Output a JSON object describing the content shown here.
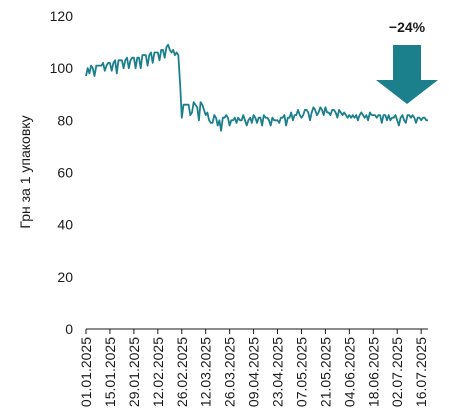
{
  "chart_data": {
    "type": "line",
    "title": "",
    "xlabel": "",
    "ylabel": "Грн за 1 упаковку",
    "ylim": [
      0,
      120
    ],
    "yticks": [
      0,
      20,
      40,
      60,
      80,
      100,
      120
    ],
    "xlim": [
      "01.01.2025",
      "20.07.2025"
    ],
    "xticks": [
      "01.01.2025",
      "15.01.2025",
      "29.01.2025",
      "12.02.2025",
      "26.02.2025",
      "12.03.2025",
      "26.03.2025",
      "09.04.2025",
      "23.04.2025",
      "07.05.2025",
      "21.05.2025",
      "04.06.2025",
      "18.06.2025",
      "02.07.2025",
      "16.07.2025"
    ],
    "grid": false,
    "legend": "none",
    "line_color": "#1b7f8c",
    "annotation": {
      "text": "−24%",
      "arrow_color": "#1b7f8c",
      "arrow_direction": "down"
    },
    "series": [
      {
        "values": [
          [
            "01.01.2025",
            97
          ],
          [
            "02.01.2025",
            100
          ],
          [
            "03.01.2025",
            98
          ],
          [
            "04.01.2025",
            101
          ],
          [
            "05.01.2025",
            100
          ],
          [
            "06.01.2025",
            97
          ],
          [
            "07.01.2025",
            101
          ],
          [
            "08.01.2025",
            101
          ],
          [
            "09.01.2025",
            101
          ],
          [
            "10.01.2025",
            101
          ],
          [
            "11.01.2025",
            102
          ],
          [
            "12.01.2025",
            99
          ],
          [
            "13.01.2025",
            101
          ],
          [
            "14.01.2025",
            102
          ],
          [
            "15.01.2025",
            102
          ],
          [
            "16.01.2025",
            99
          ],
          [
            "17.01.2025",
            102
          ],
          [
            "18.01.2025",
            103
          ],
          [
            "19.01.2025",
            98
          ],
          [
            "20.01.2025",
            103
          ],
          [
            "21.01.2025",
            103
          ],
          [
            "22.01.2025",
            103
          ],
          [
            "23.01.2025",
            100
          ],
          [
            "24.01.2025",
            103
          ],
          [
            "25.01.2025",
            104
          ],
          [
            "26.01.2025",
            100
          ],
          [
            "27.01.2025",
            103
          ],
          [
            "28.01.2025",
            104
          ],
          [
            "29.01.2025",
            104
          ],
          [
            "30.01.2025",
            100
          ],
          [
            "31.01.2025",
            104
          ],
          [
            "01.02.2025",
            104
          ],
          [
            "02.02.2025",
            100
          ],
          [
            "03.02.2025",
            105
          ],
          [
            "04.02.2025",
            105
          ],
          [
            "05.02.2025",
            105
          ],
          [
            "06.02.2025",
            101
          ],
          [
            "07.02.2025",
            105
          ],
          [
            "08.02.2025",
            106
          ],
          [
            "09.02.2025",
            102
          ],
          [
            "10.02.2025",
            106
          ],
          [
            "11.02.2025",
            106
          ],
          [
            "12.02.2025",
            106
          ],
          [
            "13.02.2025",
            103
          ],
          [
            "14.02.2025",
            107
          ],
          [
            "15.02.2025",
            107
          ],
          [
            "16.02.2025",
            104
          ],
          [
            "17.02.2025",
            108
          ],
          [
            "18.02.2025",
            109
          ],
          [
            "19.02.2025",
            107
          ],
          [
            "20.02.2025",
            106
          ],
          [
            "21.02.2025",
            107
          ],
          [
            "22.02.2025",
            105
          ],
          [
            "23.02.2025",
            106
          ],
          [
            "24.02.2025",
            105
          ],
          [
            "25.02.2025",
            94
          ],
          [
            "26.02.2025",
            81
          ],
          [
            "27.02.2025",
            86
          ],
          [
            "28.02.2025",
            86
          ],
          [
            "01.03.2025",
            86
          ],
          [
            "02.03.2025",
            86
          ],
          [
            "03.03.2025",
            82
          ],
          [
            "04.03.2025",
            83
          ],
          [
            "05.03.2025",
            87
          ],
          [
            "06.03.2025",
            86
          ],
          [
            "07.03.2025",
            85
          ],
          [
            "08.03.2025",
            80
          ],
          [
            "09.03.2025",
            87
          ],
          [
            "10.03.2025",
            86
          ],
          [
            "11.03.2025",
            84
          ],
          [
            "12.03.2025",
            82
          ],
          [
            "13.03.2025",
            83
          ],
          [
            "14.03.2025",
            80
          ],
          [
            "15.03.2025",
            79
          ],
          [
            "16.03.2025",
            79
          ],
          [
            "17.03.2025",
            82
          ],
          [
            "18.03.2025",
            81
          ],
          [
            "19.03.2025",
            78
          ],
          [
            "20.03.2025",
            80
          ],
          [
            "21.03.2025",
            76
          ],
          [
            "22.03.2025",
            81
          ],
          [
            "23.03.2025",
            81
          ],
          [
            "24.03.2025",
            82
          ],
          [
            "25.03.2025",
            81
          ],
          [
            "26.03.2025",
            78
          ],
          [
            "27.03.2025",
            80
          ],
          [
            "28.03.2025",
            80
          ],
          [
            "29.03.2025",
            81
          ],
          [
            "30.03.2025",
            79
          ],
          [
            "31.03.2025",
            81
          ],
          [
            "01.04.2025",
            80
          ],
          [
            "02.04.2025",
            80
          ],
          [
            "03.04.2025",
            82
          ],
          [
            "04.04.2025",
            80
          ],
          [
            "05.04.2025",
            78
          ],
          [
            "06.04.2025",
            80
          ],
          [
            "07.04.2025",
            81
          ],
          [
            "08.04.2025",
            79
          ],
          [
            "09.04.2025",
            82
          ],
          [
            "10.04.2025",
            81
          ],
          [
            "11.04.2025",
            79
          ],
          [
            "12.04.2025",
            81
          ],
          [
            "13.04.2025",
            81
          ],
          [
            "14.04.2025",
            78
          ],
          [
            "15.04.2025",
            82
          ],
          [
            "16.04.2025",
            81
          ],
          [
            "17.04.2025",
            81
          ],
          [
            "18.04.2025",
            80
          ],
          [
            "19.04.2025",
            78
          ],
          [
            "20.04.2025",
            81
          ],
          [
            "21.04.2025",
            80
          ],
          [
            "22.04.2025",
            80
          ],
          [
            "23.04.2025",
            80
          ],
          [
            "24.04.2025",
            79
          ],
          [
            "25.04.2025",
            81
          ],
          [
            "26.04.2025",
            81
          ],
          [
            "27.04.2025",
            82
          ],
          [
            "28.04.2025",
            78
          ],
          [
            "29.04.2025",
            81
          ],
          [
            "30.04.2025",
            81
          ],
          [
            "01.05.2025",
            83
          ],
          [
            "02.05.2025",
            80
          ],
          [
            "03.05.2025",
            82
          ],
          [
            "04.05.2025",
            82
          ],
          [
            "05.05.2025",
            84
          ],
          [
            "06.05.2025",
            82
          ],
          [
            "07.05.2025",
            81
          ],
          [
            "08.05.2025",
            82
          ],
          [
            "09.05.2025",
            84
          ],
          [
            "10.05.2025",
            84
          ],
          [
            "11.05.2025",
            83
          ],
          [
            "12.05.2025",
            80
          ],
          [
            "13.05.2025",
            83
          ],
          [
            "14.05.2025",
            85
          ],
          [
            "15.05.2025",
            84
          ],
          [
            "16.05.2025",
            82
          ],
          [
            "17.05.2025",
            83
          ],
          [
            "18.05.2025",
            85
          ],
          [
            "19.05.2025",
            84
          ],
          [
            "20.05.2025",
            82
          ],
          [
            "21.05.2025",
            85
          ],
          [
            "22.05.2025",
            83
          ],
          [
            "23.05.2025",
            83
          ],
          [
            "24.05.2025",
            82
          ],
          [
            "25.05.2025",
            84
          ],
          [
            "26.05.2025",
            84
          ],
          [
            "27.05.2025",
            83
          ],
          [
            "28.05.2025",
            81
          ],
          [
            "29.05.2025",
            84
          ],
          [
            "30.05.2025",
            83
          ],
          [
            "31.05.2025",
            82
          ],
          [
            "01.06.2025",
            83
          ],
          [
            "02.06.2025",
            82
          ],
          [
            "03.06.2025",
            81
          ],
          [
            "04.06.2025",
            82
          ],
          [
            "05.06.2025",
            81
          ],
          [
            "06.06.2025",
            82
          ],
          [
            "07.06.2025",
            81
          ],
          [
            "08.06.2025",
            82
          ],
          [
            "09.06.2025",
            80
          ],
          [
            "10.06.2025",
            82
          ],
          [
            "11.06.2025",
            83
          ],
          [
            "12.06.2025",
            82
          ],
          [
            "13.06.2025",
            81
          ],
          [
            "14.06.2025",
            82
          ],
          [
            "15.06.2025",
            80
          ],
          [
            "16.06.2025",
            83
          ],
          [
            "17.06.2025",
            82
          ],
          [
            "18.06.2025",
            82
          ],
          [
            "19.06.2025",
            82
          ],
          [
            "20.06.2025",
            81
          ],
          [
            "21.06.2025",
            82
          ],
          [
            "22.06.2025",
            82
          ],
          [
            "23.06.2025",
            79
          ],
          [
            "24.06.2025",
            82
          ],
          [
            "25.06.2025",
            82
          ],
          [
            "26.06.2025",
            80
          ],
          [
            "27.06.2025",
            82
          ],
          [
            "28.06.2025",
            80
          ],
          [
            "29.06.2025",
            81
          ],
          [
            "30.06.2025",
            81
          ],
          [
            "01.07.2025",
            82
          ],
          [
            "02.07.2025",
            80
          ],
          [
            "03.07.2025",
            78
          ],
          [
            "04.07.2025",
            81
          ],
          [
            "05.07.2025",
            82
          ],
          [
            "06.07.2025",
            80
          ],
          [
            "07.07.2025",
            79
          ],
          [
            "08.07.2025",
            82
          ],
          [
            "09.07.2025",
            82
          ],
          [
            "10.07.2025",
            81
          ],
          [
            "11.07.2025",
            82
          ],
          [
            "12.07.2025",
            81
          ],
          [
            "13.07.2025",
            79
          ],
          [
            "14.07.2025",
            81
          ],
          [
            "15.07.2025",
            81
          ],
          [
            "16.07.2025",
            80
          ],
          [
            "17.07.2025",
            81
          ],
          [
            "18.07.2025",
            81
          ],
          [
            "19.07.2025",
            80
          ],
          [
            "20.07.2025",
            80
          ]
        ]
      }
    ]
  }
}
